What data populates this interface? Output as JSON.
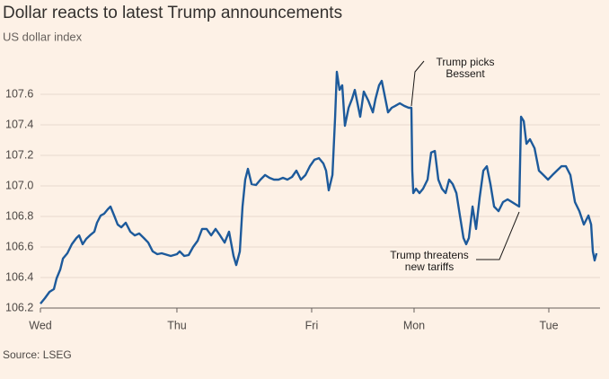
{
  "chart_data": {
    "type": "line",
    "title": "Dollar reacts to latest Trump announcements",
    "subtitle": "US dollar index",
    "source": "Source: LSEG",
    "color": "#1d5a9b",
    "grid": true,
    "xlim": [
      0,
      4.153
    ],
    "xticks": [
      {
        "value": 0,
        "label": "Wed"
      },
      {
        "value": 1.013,
        "label": "Thu"
      },
      {
        "value": 2.013,
        "label": "Fri"
      },
      {
        "value": 2.773,
        "label": "Mon"
      },
      {
        "value": 3.773,
        "label": "Tue"
      }
    ],
    "ylim": [
      106.2,
      107.85
    ],
    "yticks": [
      106.2,
      106.4,
      106.6,
      106.8,
      {
        "value": 107.0,
        "label": "107.0"
      },
      107.2,
      107.4,
      107.6
    ],
    "annotations": [
      {
        "lines": [
          "Trump picks",
          "Bessent"
        ]
      },
      {
        "lines": [
          "Trump threatens",
          "new tariffs"
        ]
      }
    ],
    "x": [
      0,
      0.033,
      0.067,
      0.1,
      0.12,
      0.147,
      0.167,
      0.2,
      0.233,
      0.267,
      0.287,
      0.313,
      0.34,
      0.367,
      0.4,
      0.42,
      0.447,
      0.473,
      0.5,
      0.52,
      0.547,
      0.573,
      0.6,
      0.633,
      0.667,
      0.7,
      0.733,
      0.767,
      0.8,
      0.833,
      0.867,
      0.9,
      0.967,
      1.013,
      1.033,
      1.067,
      1.1,
      1.133,
      1.167,
      1.2,
      1.233,
      1.267,
      1.3,
      1.333,
      1.367,
      1.4,
      1.433,
      1.453,
      1.48,
      1.5,
      1.52,
      1.54,
      1.567,
      1.6,
      1.633,
      1.667,
      1.7,
      1.733,
      1.767,
      1.8,
      1.833,
      1.867,
      1.9,
      1.933,
      1.967,
      2.0,
      2.033,
      2.067,
      2.1,
      2.12,
      2.14,
      2.167,
      2.187,
      2.2,
      2.22,
      2.24,
      2.26,
      2.287,
      2.313,
      2.333,
      2.353,
      2.373,
      2.4,
      2.433,
      2.467,
      2.487,
      2.513,
      2.533,
      2.553,
      2.58,
      2.607,
      2.633,
      2.667,
      2.7,
      2.733,
      2.753,
      2.76,
      2.767,
      2.787,
      2.813,
      2.84,
      2.873,
      2.9,
      2.927,
      2.953,
      2.98,
      3.007,
      3.033,
      3.06,
      3.087,
      3.113,
      3.14,
      3.16,
      3.18,
      3.207,
      3.233,
      3.26,
      3.287,
      3.313,
      3.34,
      3.367,
      3.4,
      3.433,
      3.467,
      3.5,
      3.533,
      3.553,
      3.567,
      3.587,
      3.607,
      3.633,
      3.667,
      3.7,
      3.733,
      3.767,
      3.8,
      3.833,
      3.867,
      3.9,
      3.933,
      3.967,
      4.0,
      4.033,
      4.067,
      4.087,
      4.1,
      4.113,
      4.127
    ],
    "values": [
      106.229,
      106.265,
      106.306,
      106.324,
      106.394,
      106.453,
      106.524,
      106.559,
      106.618,
      106.659,
      106.676,
      106.618,
      106.653,
      106.676,
      106.7,
      106.759,
      106.806,
      106.818,
      106.847,
      106.865,
      106.806,
      106.747,
      106.729,
      106.759,
      106.7,
      106.676,
      106.688,
      106.659,
      106.629,
      106.571,
      106.553,
      106.559,
      106.541,
      106.553,
      106.571,
      106.541,
      106.547,
      106.6,
      106.641,
      106.718,
      106.718,
      106.676,
      106.718,
      106.676,
      106.629,
      106.7,
      106.541,
      106.482,
      106.571,
      106.865,
      107.041,
      107.112,
      107.012,
      107.006,
      107.041,
      107.071,
      107.053,
      107.041,
      107.041,
      107.053,
      107.041,
      107.059,
      107.1,
      107.041,
      107.071,
      107.129,
      107.171,
      107.182,
      107.147,
      107.1,
      106.971,
      107.071,
      107.453,
      107.747,
      107.629,
      107.659,
      107.394,
      107.512,
      107.571,
      107.629,
      107.541,
      107.453,
      107.618,
      107.559,
      107.482,
      107.571,
      107.659,
      107.688,
      107.6,
      107.482,
      107.512,
      107.524,
      107.541,
      107.524,
      107.512,
      107.512,
      107.1,
      106.953,
      106.982,
      106.953,
      106.982,
      107.041,
      107.218,
      107.229,
      107.041,
      106.982,
      106.953,
      107.041,
      107.012,
      106.953,
      106.806,
      106.659,
      106.618,
      106.659,
      106.865,
      106.718,
      106.924,
      107.1,
      107.129,
      107.012,
      106.865,
      106.835,
      106.894,
      106.912,
      106.894,
      106.876,
      106.865,
      107.453,
      107.424,
      107.276,
      107.306,
      107.247,
      107.1,
      107.071,
      107.041,
      107.071,
      107.1,
      107.129,
      107.129,
      107.071,
      106.894,
      106.835,
      106.747,
      106.806,
      106.747,
      106.571,
      106.512,
      106.559
    ]
  }
}
